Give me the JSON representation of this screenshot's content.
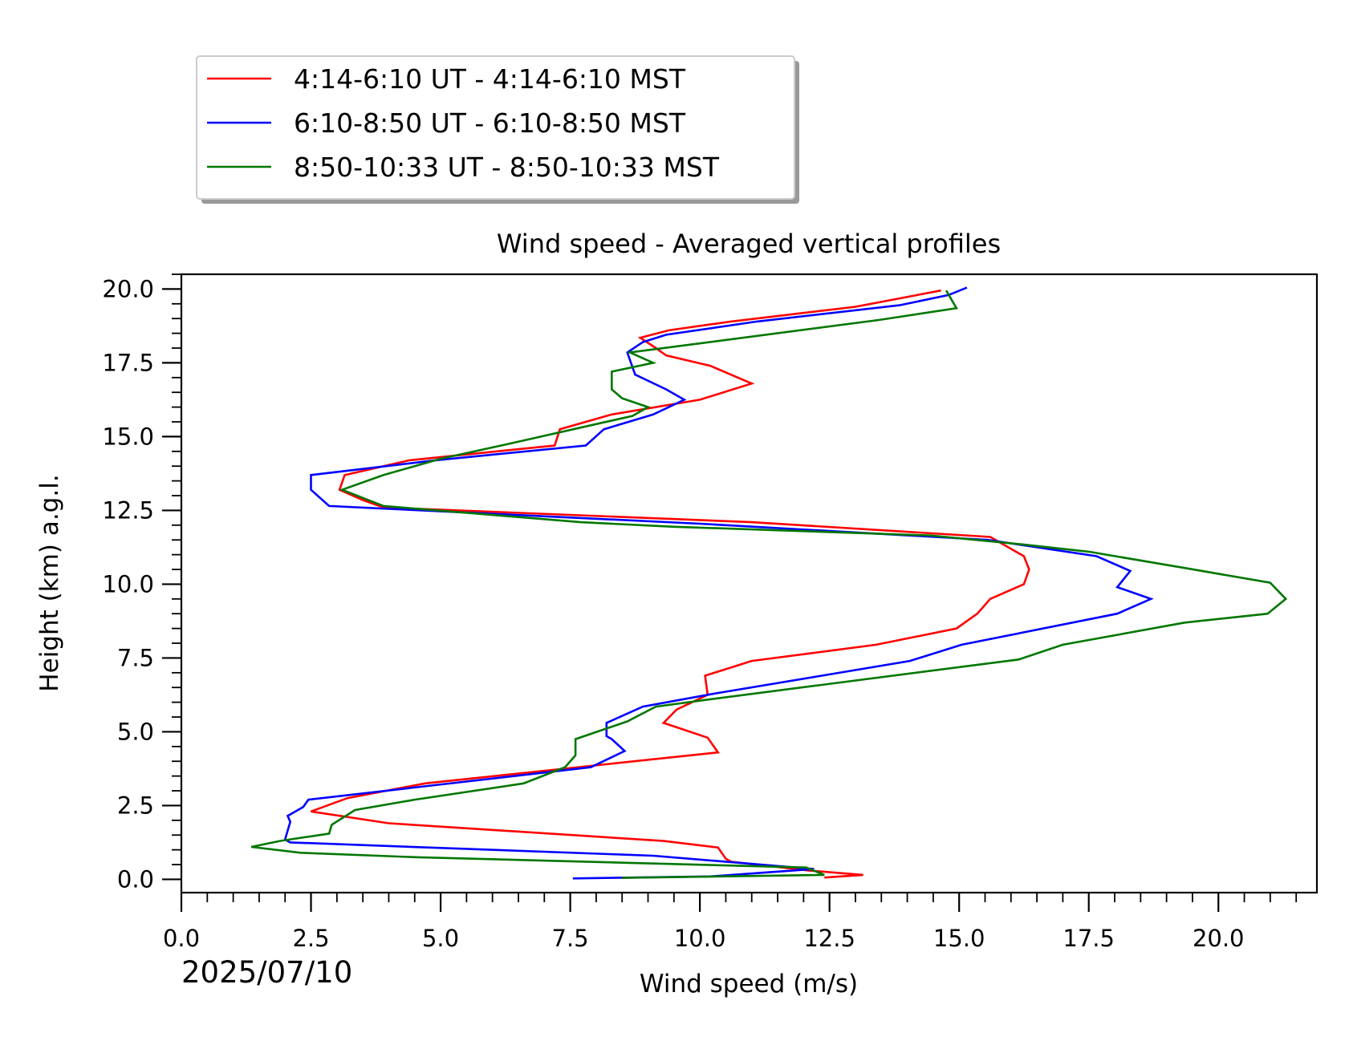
{
  "chart_data": {
    "type": "line",
    "title": "Wind speed - Averaged vertical profiles",
    "xlabel": "Wind speed (m/s)",
    "ylabel": "Height (km) a.g.l.",
    "date_label": "2025/07/10",
    "xlim": [
      0,
      21.9
    ],
    "ylim": [
      -0.45,
      20.5
    ],
    "xticks": [
      "0.0",
      "2.5",
      "5.0",
      "7.5",
      "10.0",
      "12.5",
      "15.0",
      "17.5",
      "20.0"
    ],
    "yticks": [
      "0.0",
      "2.5",
      "5.0",
      "7.5",
      "10.0",
      "12.5",
      "15.0",
      "17.5",
      "20.0"
    ],
    "grid": false,
    "legend_position": "top-left, above plot",
    "series": [
      {
        "name": "4:14-6:10 UT - 4:14-6:10 MST",
        "color": "#ff0000",
        "points": [
          [
            12.4,
            0.06
          ],
          [
            13.15,
            0.15
          ],
          [
            12.1,
            0.3
          ],
          [
            10.6,
            0.6
          ],
          [
            10.5,
            0.7
          ],
          [
            10.35,
            1.08
          ],
          [
            9.3,
            1.3
          ],
          [
            4.0,
            1.9
          ],
          [
            2.5,
            2.3
          ],
          [
            3.2,
            2.75
          ],
          [
            4.7,
            3.25
          ],
          [
            10.35,
            4.3
          ],
          [
            10.15,
            4.8
          ],
          [
            9.3,
            5.3
          ],
          [
            9.55,
            5.75
          ],
          [
            10.15,
            6.25
          ],
          [
            10.1,
            6.9
          ],
          [
            11.0,
            7.4
          ],
          [
            13.4,
            7.95
          ],
          [
            14.95,
            8.5
          ],
          [
            15.35,
            9.0
          ],
          [
            15.6,
            9.5
          ],
          [
            16.25,
            10.0
          ],
          [
            16.35,
            10.5
          ],
          [
            16.25,
            10.95
          ],
          [
            15.6,
            11.6
          ],
          [
            11.0,
            12.1
          ],
          [
            3.9,
            12.6
          ],
          [
            3.5,
            12.85
          ],
          [
            3.05,
            13.2
          ],
          [
            3.15,
            13.7
          ],
          [
            4.4,
            14.2
          ],
          [
            7.2,
            14.7
          ],
          [
            7.3,
            15.25
          ],
          [
            8.3,
            15.75
          ],
          [
            10.0,
            16.25
          ],
          [
            11.0,
            16.8
          ],
          [
            10.2,
            17.4
          ],
          [
            9.35,
            17.75
          ],
          [
            9.15,
            18.0
          ],
          [
            8.85,
            18.35
          ],
          [
            9.4,
            18.6
          ],
          [
            10.6,
            18.9
          ],
          [
            13.0,
            19.4
          ],
          [
            14.65,
            19.95
          ]
        ]
      },
      {
        "name": "6:10-8:50 UT - 6:10-8:50 MST",
        "color": "#0000ff",
        "points": [
          [
            7.55,
            0.03
          ],
          [
            10.2,
            0.1
          ],
          [
            11.8,
            0.3
          ],
          [
            12.2,
            0.35
          ],
          [
            9.1,
            0.8
          ],
          [
            2.1,
            1.25
          ],
          [
            2.0,
            1.35
          ],
          [
            2.1,
            1.95
          ],
          [
            2.05,
            2.15
          ],
          [
            2.35,
            2.45
          ],
          [
            2.45,
            2.7
          ],
          [
            7.9,
            3.8
          ],
          [
            8.55,
            4.35
          ],
          [
            8.3,
            4.75
          ],
          [
            8.2,
            4.85
          ],
          [
            8.2,
            5.3
          ],
          [
            8.9,
            5.85
          ],
          [
            10.3,
            6.3
          ],
          [
            12.35,
            6.9
          ],
          [
            14.05,
            7.4
          ],
          [
            15.05,
            7.95
          ],
          [
            18.05,
            9.0
          ],
          [
            18.7,
            9.5
          ],
          [
            18.05,
            9.9
          ],
          [
            18.3,
            10.45
          ],
          [
            17.65,
            10.95
          ],
          [
            15.55,
            11.5
          ],
          [
            10.0,
            12.05
          ],
          [
            2.85,
            12.65
          ],
          [
            2.5,
            13.2
          ],
          [
            2.5,
            13.7
          ],
          [
            4.9,
            14.2
          ],
          [
            7.8,
            14.7
          ],
          [
            8.15,
            15.25
          ],
          [
            9.1,
            15.75
          ],
          [
            9.7,
            16.25
          ],
          [
            9.35,
            16.6
          ],
          [
            8.75,
            17.1
          ],
          [
            8.6,
            17.85
          ],
          [
            8.9,
            18.2
          ],
          [
            9.35,
            18.45
          ],
          [
            11.1,
            18.9
          ],
          [
            13.85,
            19.45
          ],
          [
            14.8,
            19.8
          ],
          [
            15.15,
            20.05
          ]
        ]
      },
      {
        "name": "8:50-10:33 UT - 8:50-10:33 MST",
        "color": "#007700",
        "points": [
          [
            8.5,
            0.05
          ],
          [
            12.4,
            0.15
          ],
          [
            12.05,
            0.4
          ],
          [
            4.5,
            0.75
          ],
          [
            2.3,
            0.9
          ],
          [
            1.35,
            1.1
          ],
          [
            1.9,
            1.3
          ],
          [
            2.85,
            1.55
          ],
          [
            2.9,
            1.85
          ],
          [
            3.35,
            2.35
          ],
          [
            4.5,
            2.7
          ],
          [
            6.6,
            3.25
          ],
          [
            7.4,
            3.8
          ],
          [
            7.6,
            4.2
          ],
          [
            7.6,
            4.75
          ],
          [
            8.6,
            5.35
          ],
          [
            9.15,
            5.85
          ],
          [
            10.2,
            6.1
          ],
          [
            16.15,
            7.45
          ],
          [
            17.0,
            7.95
          ],
          [
            19.35,
            8.7
          ],
          [
            20.95,
            9.0
          ],
          [
            21.3,
            9.5
          ],
          [
            21.0,
            10.05
          ],
          [
            19.35,
            10.55
          ],
          [
            17.5,
            11.1
          ],
          [
            16.2,
            11.35
          ],
          [
            14.45,
            11.65
          ],
          [
            9.45,
            11.95
          ],
          [
            7.7,
            12.1
          ],
          [
            3.9,
            12.65
          ],
          [
            3.1,
            13.2
          ],
          [
            3.9,
            13.7
          ],
          [
            5.0,
            14.25
          ],
          [
            6.3,
            14.75
          ],
          [
            8.7,
            15.7
          ],
          [
            9.0,
            16.0
          ],
          [
            8.5,
            16.3
          ],
          [
            8.3,
            16.6
          ],
          [
            8.3,
            17.2
          ],
          [
            9.1,
            17.5
          ],
          [
            8.65,
            17.85
          ],
          [
            13.45,
            18.95
          ],
          [
            14.95,
            19.35
          ],
          [
            14.75,
            19.95
          ]
        ]
      }
    ]
  }
}
